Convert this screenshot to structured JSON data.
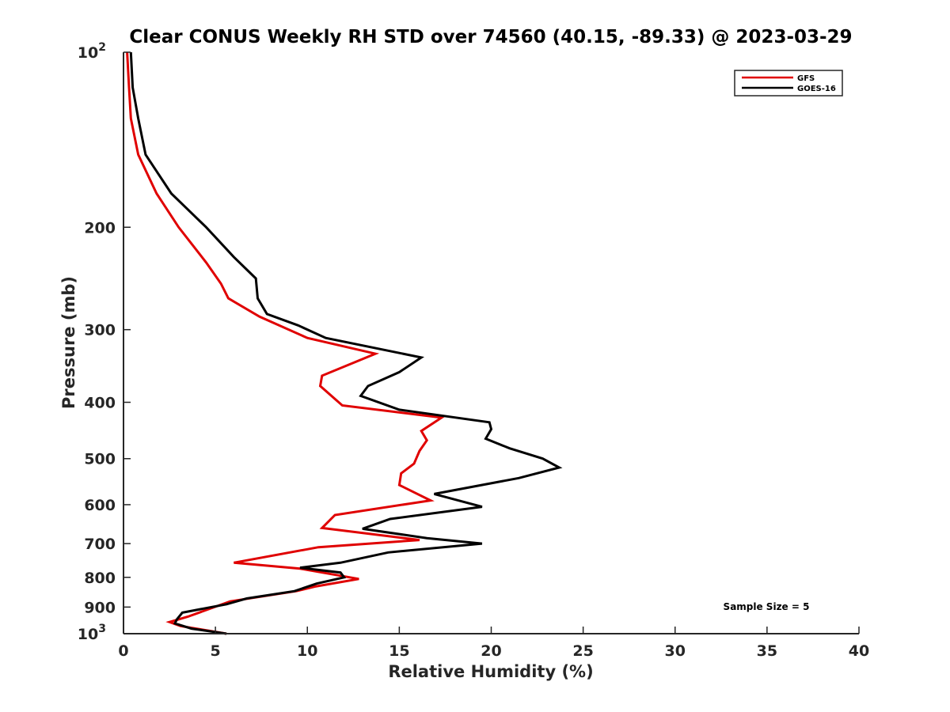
{
  "chart_data": {
    "type": "line",
    "title": "Clear CONUS Weekly RH STD over 74560 (40.15, -89.33) @ 2023-03-29",
    "xlabel": "Relative Humidity (%)",
    "ylabel": "Pressure (mb)",
    "xlim": [
      0,
      40
    ],
    "ylim": [
      100,
      1000
    ],
    "y_scale": "log",
    "y_reversed": true,
    "grid": false,
    "legend_position": "top-right",
    "x_ticks": [
      "0",
      "5",
      "10",
      "15",
      "20",
      "25",
      "30",
      "35",
      "40"
    ],
    "y_ticks": [
      {
        "value": 100,
        "label": "10",
        "exp": "2"
      },
      {
        "value": 200,
        "label": "200"
      },
      {
        "value": 300,
        "label": "300"
      },
      {
        "value": 400,
        "label": "400"
      },
      {
        "value": 500,
        "label": "500"
      },
      {
        "value": 600,
        "label": "600"
      },
      {
        "value": 700,
        "label": "700"
      },
      {
        "value": 800,
        "label": "800"
      },
      {
        "value": 900,
        "label": "900"
      },
      {
        "value": 1000,
        "label": "10",
        "exp": "3"
      }
    ],
    "annotation": "Sample Size = 5",
    "series": [
      {
        "name": "GFS",
        "color": "#e00000",
        "points": [
          [
            0.2,
            100
          ],
          [
            0.3,
            115
          ],
          [
            0.4,
            130
          ],
          [
            0.8,
            150
          ],
          [
            1.8,
            175
          ],
          [
            3.0,
            200
          ],
          [
            4.5,
            230
          ],
          [
            5.3,
            250
          ],
          [
            5.7,
            265
          ],
          [
            7.4,
            285
          ],
          [
            10.0,
            310
          ],
          [
            13.7,
            330
          ],
          [
            10.8,
            360
          ],
          [
            10.7,
            375
          ],
          [
            11.9,
            405
          ],
          [
            17.3,
            425
          ],
          [
            16.2,
            448
          ],
          [
            16.5,
            465
          ],
          [
            16.1,
            485
          ],
          [
            15.8,
            510
          ],
          [
            15.1,
            530
          ],
          [
            15.0,
            555
          ],
          [
            16.7,
            590
          ],
          [
            11.5,
            625
          ],
          [
            10.8,
            658
          ],
          [
            16.1,
            690
          ],
          [
            10.6,
            710
          ],
          [
            6.0,
            755
          ],
          [
            9.6,
            773
          ],
          [
            12.8,
            805
          ],
          [
            10.4,
            830
          ],
          [
            9.4,
            845
          ],
          [
            5.8,
            880
          ],
          [
            3.5,
            935
          ],
          [
            2.5,
            955
          ],
          [
            3.1,
            970
          ],
          [
            5.6,
            1000
          ]
        ]
      },
      {
        "name": "GOES-16",
        "color": "#000000",
        "points": [
          [
            0.4,
            100
          ],
          [
            0.5,
            115
          ],
          [
            0.8,
            130
          ],
          [
            1.2,
            150
          ],
          [
            2.6,
            175
          ],
          [
            4.5,
            200
          ],
          [
            6.0,
            225
          ],
          [
            7.2,
            245
          ],
          [
            7.3,
            265
          ],
          [
            7.8,
            282
          ],
          [
            9.5,
            295
          ],
          [
            11.0,
            310
          ],
          [
            16.2,
            335
          ],
          [
            15.0,
            355
          ],
          [
            13.3,
            375
          ],
          [
            12.9,
            390
          ],
          [
            15.0,
            412
          ],
          [
            19.9,
            433
          ],
          [
            20.0,
            445
          ],
          [
            19.7,
            462
          ],
          [
            21.0,
            480
          ],
          [
            22.8,
            500
          ],
          [
            23.7,
            518
          ],
          [
            21.5,
            540
          ],
          [
            16.9,
            575
          ],
          [
            19.5,
            605
          ],
          [
            14.5,
            635
          ],
          [
            13.0,
            660
          ],
          [
            16.5,
            685
          ],
          [
            19.5,
            700
          ],
          [
            14.4,
            725
          ],
          [
            11.8,
            755
          ],
          [
            9.6,
            770
          ],
          [
            11.8,
            785
          ],
          [
            12.0,
            800
          ],
          [
            10.5,
            820
          ],
          [
            9.3,
            845
          ],
          [
            6.7,
            870
          ],
          [
            5.6,
            890
          ],
          [
            3.2,
            920
          ],
          [
            2.9,
            945
          ],
          [
            2.8,
            960
          ],
          [
            3.7,
            980
          ],
          [
            5.6,
            1000
          ]
        ]
      }
    ]
  }
}
